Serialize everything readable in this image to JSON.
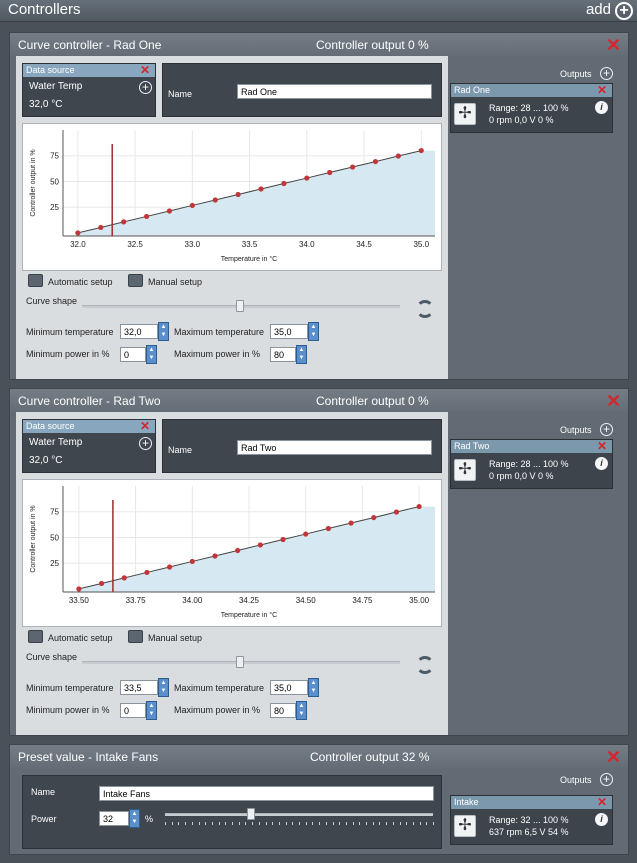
{
  "header": {
    "title": "Controllers",
    "add_label": "add"
  },
  "panels": [
    {
      "title": "Curve controller  -  Rad One",
      "output": "Controller output   0 %",
      "datasource": {
        "label": "Data source",
        "sensor": "Water Temp",
        "value": "32,0 °C"
      },
      "name_label": "Name",
      "name_value": "Rad One",
      "outputs_label": "Outputs",
      "output_card": {
        "title": "Rad One",
        "range": "Range:  28 ... 100  %",
        "stats": "0 rpm  0,0 V  0 %"
      },
      "auto_label": "Automatic setup",
      "manual_label": "Manual setup",
      "curve_shape_label": "Curve shape",
      "min_temp_label": "Minimum temperature",
      "min_temp": "32,0",
      "max_temp_label": "Maximum temperature",
      "max_temp": "35,0",
      "min_power_label": "Minimum power in %",
      "min_power": "0",
      "max_power_label": "Maximum power in %",
      "max_power": "80",
      "chart_data": {
        "type": "line",
        "xlabel": "Temperature in °C",
        "ylabel": "Controller output in %",
        "x": [
          32.0,
          32.2,
          32.4,
          32.6,
          32.8,
          33.0,
          33.2,
          33.4,
          33.6,
          33.8,
          34.0,
          34.2,
          34.4,
          34.6,
          34.8,
          35.0
        ],
        "y": [
          0,
          5.3,
          10.7,
          16.0,
          21.3,
          26.7,
          32.0,
          37.3,
          42.7,
          48.0,
          53.3,
          58.7,
          64.0,
          69.3,
          74.7,
          80.0
        ],
        "current_x": 32.3,
        "xlim": [
          31.87,
          35.12
        ],
        "ylim": [
          -3,
          100
        ],
        "xticks": [
          "32.0",
          "32.5",
          "33.0",
          "33.5",
          "34.0",
          "34.5",
          "35.0"
        ],
        "xtick_vals": [
          32.0,
          32.5,
          33.0,
          33.5,
          34.0,
          34.5,
          35.0
        ],
        "yticks": [
          "25",
          "50",
          "75"
        ],
        "ytick_vals": [
          25,
          50,
          75
        ],
        "grid": true
      }
    },
    {
      "title": "Curve controller  -  Rad Two",
      "output": "Controller output   0 %",
      "datasource": {
        "label": "Data source",
        "sensor": "Water Temp",
        "value": "32,0 °C"
      },
      "name_label": "Name",
      "name_value": "Rad Two",
      "outputs_label": "Outputs",
      "output_card": {
        "title": "Rad Two",
        "range": "Range:  28 ... 100  %",
        "stats": "0 rpm  0,0 V  0 %"
      },
      "auto_label": "Automatic setup",
      "manual_label": "Manual setup",
      "curve_shape_label": "Curve shape",
      "min_temp_label": "Minimum temperature",
      "min_temp": "33,5",
      "max_temp_label": "Maximum temperature",
      "max_temp": "35,0",
      "min_power_label": "Minimum power in %",
      "min_power": "0",
      "max_power_label": "Maximum power in %",
      "max_power": "80",
      "chart_data": {
        "type": "line",
        "xlabel": "Temperature in °C",
        "ylabel": "Controller output in %",
        "x": [
          33.5,
          33.6,
          33.7,
          33.8,
          33.9,
          34.0,
          34.1,
          34.2,
          34.3,
          34.4,
          34.5,
          34.6,
          34.7,
          34.8,
          34.9,
          35.0
        ],
        "y": [
          0,
          5.3,
          10.7,
          16.0,
          21.3,
          26.7,
          32.0,
          37.3,
          42.7,
          48.0,
          53.3,
          58.7,
          64.0,
          69.3,
          74.7,
          80.0
        ],
        "current_x": 33.65,
        "xlim": [
          33.43,
          35.07
        ],
        "ylim": [
          -3,
          100
        ],
        "xticks": [
          "33.50",
          "33.75",
          "34.00",
          "34.25",
          "34.50",
          "34.75",
          "35.00"
        ],
        "xtick_vals": [
          33.5,
          33.75,
          34.0,
          34.25,
          34.5,
          34.75,
          35.0
        ],
        "yticks": [
          "25",
          "50",
          "75"
        ],
        "ytick_vals": [
          25,
          50,
          75
        ],
        "grid": true
      }
    }
  ],
  "preset": {
    "title": "Preset value  -  Intake Fans",
    "output": "Controller output   32 %",
    "name_label": "Name",
    "name_value": "Intake Fans",
    "power_label": "Power",
    "power_value": "32",
    "power_unit": "%",
    "power_level": 0.32,
    "outputs_label": "Outputs",
    "output_card": {
      "title": "Intake",
      "range": "Range:  32 ... 100  %",
      "stats": "637 rpm  6,5 V  54 %"
    }
  },
  "colors": {
    "accent_red": "#d4262c",
    "curve": "#c0363a",
    "fill": "#d6e8f1",
    "marker": "#a52a2a"
  }
}
